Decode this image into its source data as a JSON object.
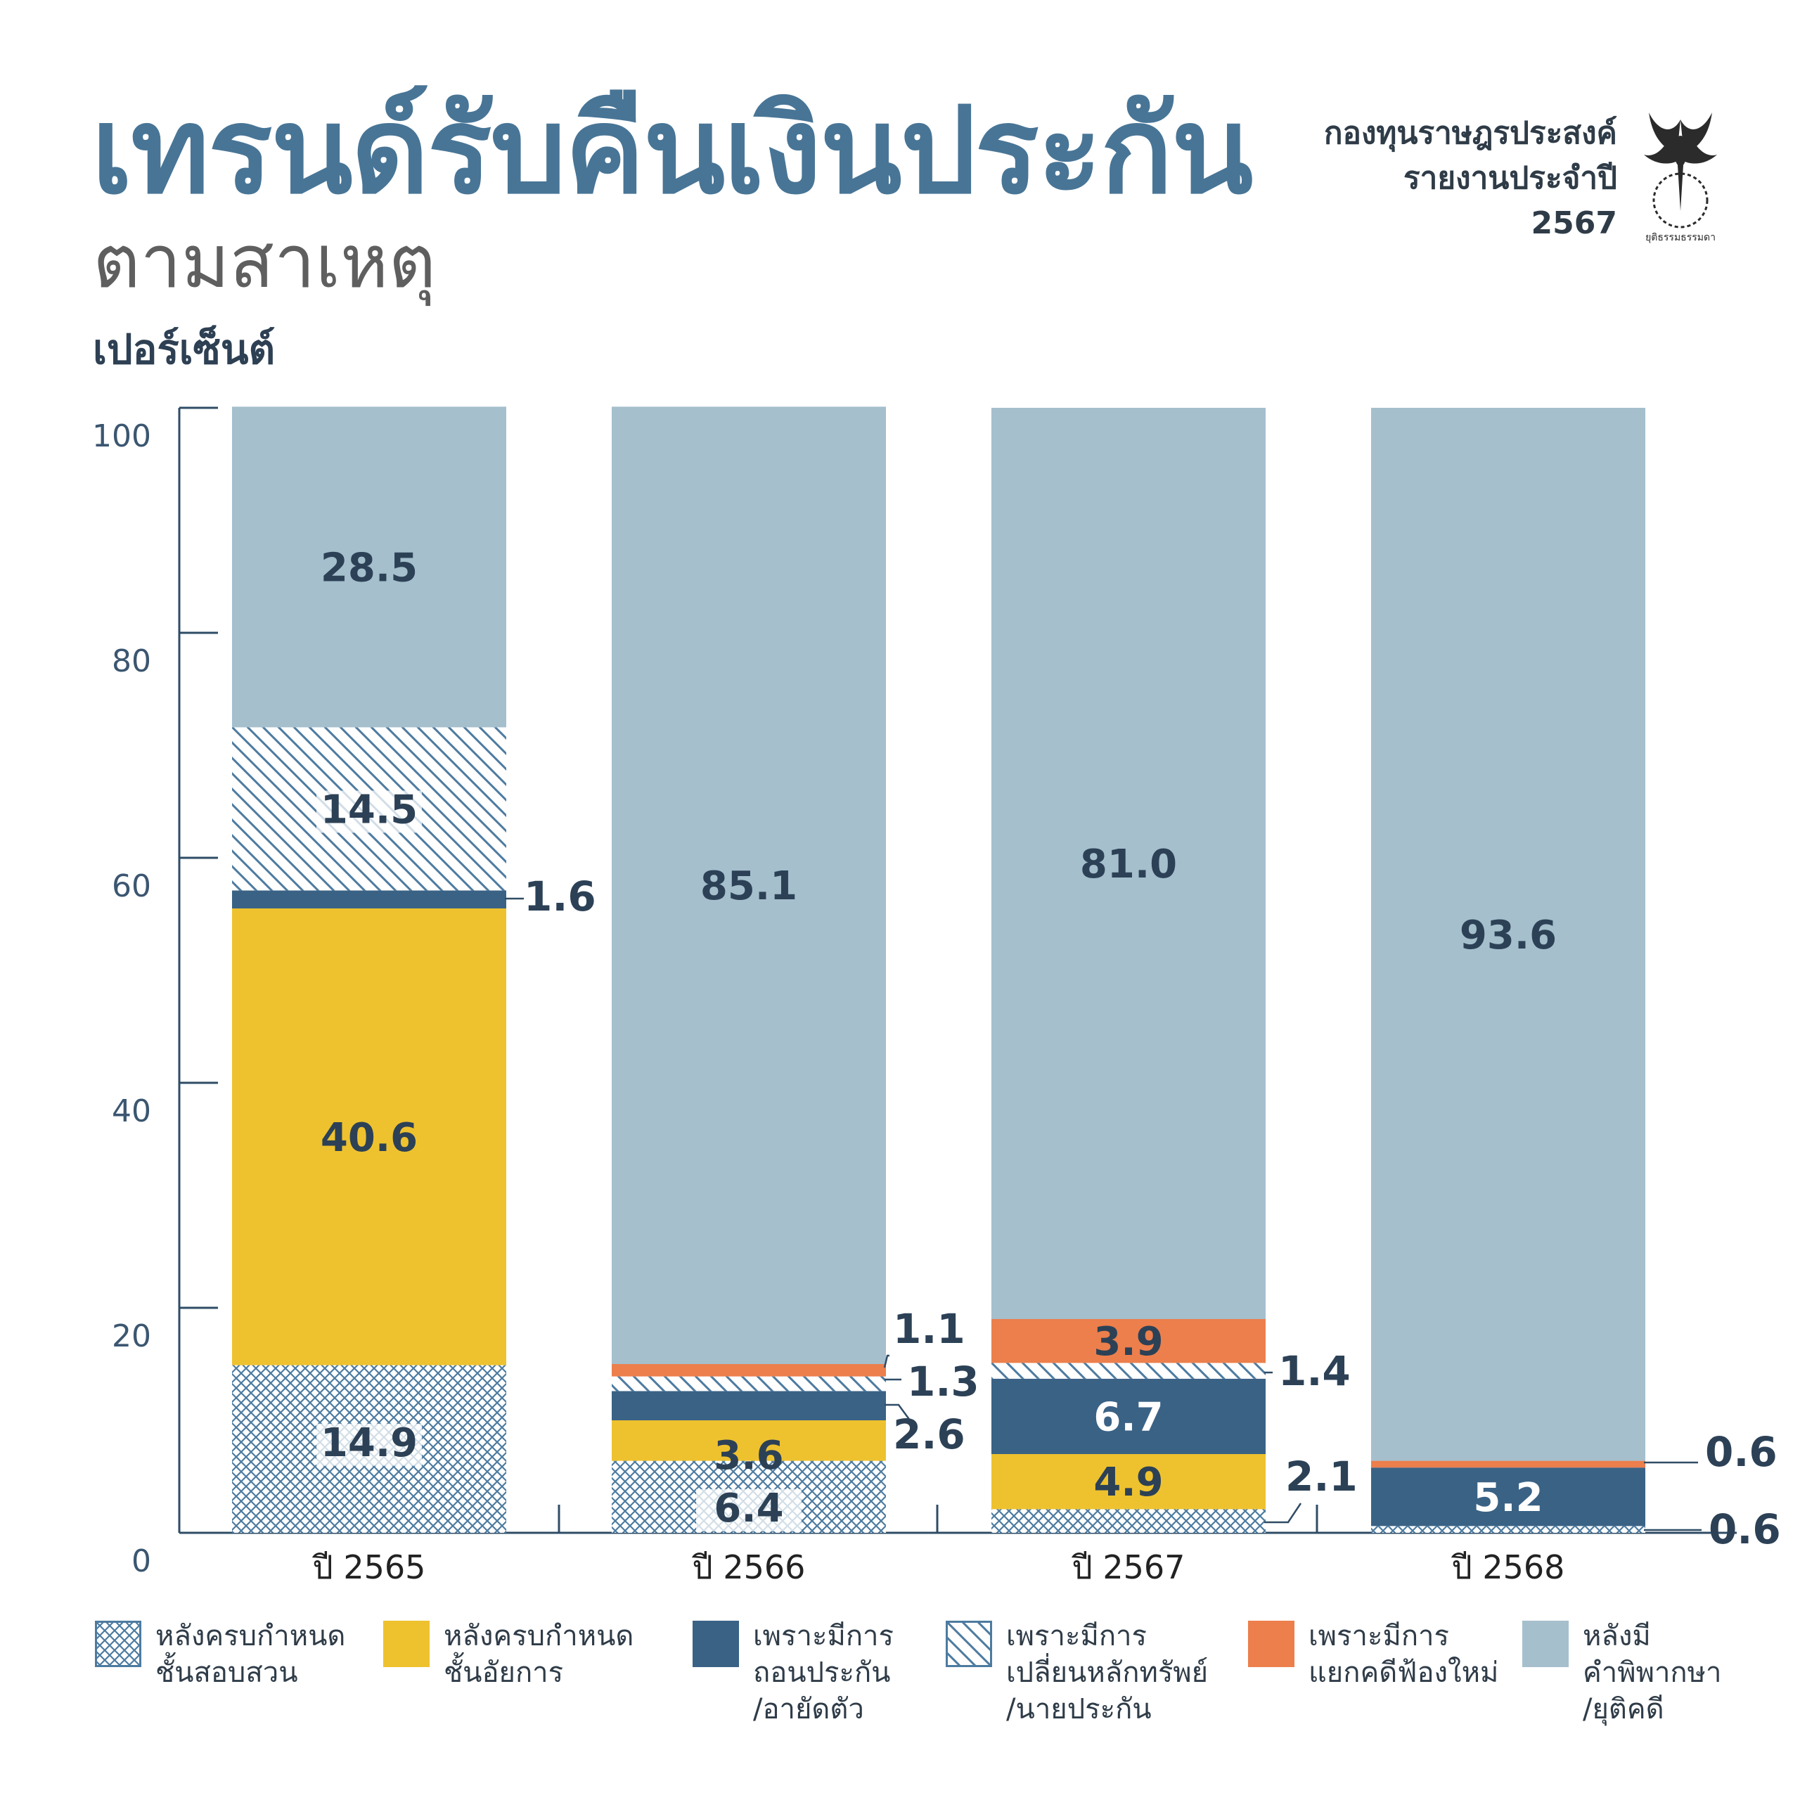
{
  "header": {
    "title": "เทรนด์รับคืนเงินประกัน",
    "subtitle": "ตามสาเหตุ",
    "unit_label": "เปอร์เซ็นต์",
    "org_lines": [
      "กองทุนราษฎรประสงค์",
      "รายงานประจำปี",
      "2567"
    ],
    "logo_caption": "ยุติธรรมธรรมดา"
  },
  "colors": {
    "light_blue": "#a5bfcd",
    "dark_blue": "#3a6285",
    "yellow": "#eec22f",
    "orange": "#ec7f4c",
    "pattern_stroke": "#4d7ba0",
    "axis": "#2f4c66",
    "label_dark": "#2c4156",
    "label_light": "#ffffff"
  },
  "legend": [
    {
      "key": "investigation",
      "pattern": "crosshatch",
      "color": "#4d7ba0",
      "lines": [
        "หลังครบกำหนด",
        "ชั้นสอบสวน"
      ]
    },
    {
      "key": "prosecution",
      "pattern": "solid",
      "color": "#eec22f",
      "lines": [
        "หลังครบกำหนด",
        "ชั้นอัยการ"
      ]
    },
    {
      "key": "withdraw",
      "pattern": "solid",
      "color": "#3a6285",
      "lines": [
        "เพราะมีการ",
        "ถอนประกัน",
        "/อายัดตัว"
      ]
    },
    {
      "key": "change_collateral",
      "pattern": "diagonal",
      "color": "#4d7ba0",
      "lines": [
        "เพราะมีการ",
        "เปลี่ยนหลักทรัพย์",
        "/นายประกัน"
      ]
    },
    {
      "key": "case_split",
      "pattern": "solid",
      "color": "#ec7f4c",
      "lines": [
        "เพราะมีการ",
        "แยกคดีฟ้องใหม่"
      ]
    },
    {
      "key": "verdict",
      "pattern": "solid",
      "color": "#a5bfcd",
      "lines": [
        "หลังมี",
        "คำพิพากษา",
        "/ยุติคดี"
      ]
    }
  ],
  "chart_data": {
    "type": "bar",
    "stacked": true,
    "ylim": [
      0,
      100
    ],
    "yticks": [
      0,
      20,
      40,
      60,
      80,
      100
    ],
    "ylabel": "เปอร์เซ็นต์",
    "categories": [
      "ปี 2565",
      "ปี 2566",
      "ปี 2567",
      "ปี 2568"
    ],
    "series": [
      {
        "key": "investigation",
        "values": [
          14.9,
          6.4,
          2.1,
          0.6
        ]
      },
      {
        "key": "prosecution",
        "values": [
          40.6,
          3.6,
          4.9,
          null
        ]
      },
      {
        "key": "withdraw",
        "values": [
          1.6,
          2.6,
          6.7,
          5.2
        ]
      },
      {
        "key": "change_collateral",
        "values": [
          14.5,
          1.3,
          1.4,
          null
        ]
      },
      {
        "key": "case_split",
        "values": [
          null,
          1.1,
          3.9,
          0.6
        ]
      },
      {
        "key": "verdict",
        "values": [
          28.5,
          85.1,
          81.0,
          93.6
        ]
      }
    ],
    "data_labels": [
      [
        "14.9",
        "40.6",
        "1.6",
        "14.5",
        "",
        "28.5"
      ],
      [
        "6.4",
        "3.6",
        "2.6",
        "1.3",
        "1.1",
        "85.1"
      ],
      [
        "2.1",
        "4.9",
        "6.7",
        "1.4",
        "3.9",
        "81.0"
      ],
      [
        "0.6",
        "",
        "5.2",
        "",
        "0.6",
        "93.6"
      ]
    ]
  }
}
